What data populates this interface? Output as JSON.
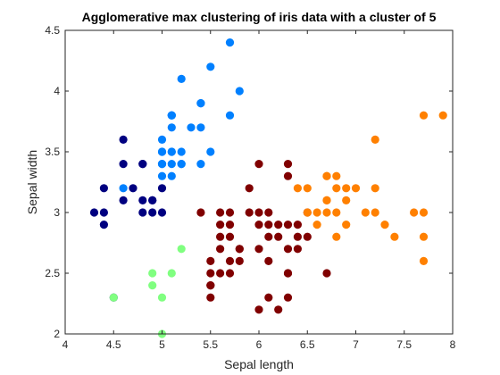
{
  "chart_data": {
    "type": "scatter",
    "title": "Agglomerative max clustering of iris data with a cluster of 5",
    "xlabel": "Sepal length",
    "ylabel": "Sepal width",
    "xlim": [
      4,
      8
    ],
    "ylim": [
      2,
      4.5
    ],
    "x_ticks": [
      4,
      4.5,
      5,
      5.5,
      6,
      6.5,
      7,
      7.5,
      8
    ],
    "x_tick_labels": [
      "4",
      "4.5",
      "5",
      "5.5",
      "6",
      "6.5",
      "7",
      "7.5",
      "8"
    ],
    "y_ticks": [
      2,
      2.5,
      3,
      3.5,
      4,
      4.5
    ],
    "y_tick_labels": [
      "2",
      "2.5",
      "3",
      "3.5",
      "4",
      "4.5"
    ],
    "grid": false,
    "legend": "none",
    "series": [
      {
        "color": "#000080",
        "points": [
          [
            4.3,
            3.0
          ],
          [
            4.4,
            2.9
          ],
          [
            4.4,
            3.0
          ],
          [
            4.4,
            3.2
          ],
          [
            4.6,
            3.1
          ],
          [
            4.6,
            3.4
          ],
          [
            4.6,
            3.6
          ],
          [
            4.7,
            3.2
          ],
          [
            4.8,
            3.0
          ],
          [
            4.8,
            3.1
          ],
          [
            4.8,
            3.4
          ],
          [
            4.8,
            3.4
          ],
          [
            4.9,
            3.0
          ],
          [
            4.9,
            3.1
          ],
          [
            4.9,
            3.1
          ],
          [
            5.0,
            3.0
          ],
          [
            5.0,
            3.2
          ],
          [
            4.5,
            2.3
          ]
        ]
      },
      {
        "color": "#0080ff",
        "points": [
          [
            5.0,
            3.3
          ],
          [
            5.0,
            3.4
          ],
          [
            5.0,
            3.4
          ],
          [
            5.0,
            3.5
          ],
          [
            5.0,
            3.5
          ],
          [
            5.0,
            3.6
          ],
          [
            5.1,
            3.3
          ],
          [
            5.1,
            3.4
          ],
          [
            5.1,
            3.5
          ],
          [
            5.1,
            3.5
          ],
          [
            5.1,
            3.7
          ],
          [
            5.1,
            3.8
          ],
          [
            5.1,
            3.8
          ],
          [
            5.1,
            3.8
          ],
          [
            5.2,
            3.4
          ],
          [
            5.2,
            3.5
          ],
          [
            5.2,
            4.1
          ],
          [
            5.3,
            3.7
          ],
          [
            5.4,
            3.4
          ],
          [
            5.4,
            3.7
          ],
          [
            5.4,
            3.9
          ],
          [
            5.4,
            3.9
          ],
          [
            5.5,
            3.5
          ],
          [
            5.5,
            4.2
          ],
          [
            5.7,
            3.8
          ],
          [
            5.7,
            4.4
          ],
          [
            5.8,
            4.0
          ],
          [
            4.6,
            3.2
          ],
          [
            5.2,
            3.4
          ]
        ]
      },
      {
        "color": "#80ff80",
        "points": [
          [
            4.5,
            2.3
          ],
          [
            4.9,
            2.4
          ],
          [
            4.9,
            2.5
          ],
          [
            5.0,
            2.0
          ],
          [
            5.0,
            2.3
          ],
          [
            5.1,
            2.5
          ],
          [
            5.2,
            2.7
          ]
        ]
      },
      {
        "color": "#800000",
        "points": [
          [
            5.4,
            3.0
          ],
          [
            5.5,
            2.3
          ],
          [
            5.5,
            2.4
          ],
          [
            5.5,
            2.4
          ],
          [
            5.5,
            2.5
          ],
          [
            5.5,
            2.6
          ],
          [
            5.6,
            2.5
          ],
          [
            5.6,
            2.7
          ],
          [
            5.6,
            2.8
          ],
          [
            5.6,
            2.9
          ],
          [
            5.6,
            3.0
          ],
          [
            5.7,
            2.5
          ],
          [
            5.7,
            2.6
          ],
          [
            5.7,
            2.8
          ],
          [
            5.7,
            2.9
          ],
          [
            5.7,
            3.0
          ],
          [
            5.8,
            2.6
          ],
          [
            5.8,
            2.7
          ],
          [
            5.8,
            2.7
          ],
          [
            5.9,
            3.0
          ],
          [
            6.0,
            2.2
          ],
          [
            6.0,
            2.7
          ],
          [
            6.0,
            2.9
          ],
          [
            6.0,
            3.0
          ],
          [
            6.0,
            3.4
          ],
          [
            6.1,
            2.6
          ],
          [
            6.1,
            2.8
          ],
          [
            6.1,
            2.9
          ],
          [
            6.1,
            3.0
          ],
          [
            6.2,
            2.2
          ],
          [
            6.2,
            2.8
          ],
          [
            6.2,
            2.9
          ],
          [
            6.3,
            2.3
          ],
          [
            6.3,
            2.5
          ],
          [
            6.3,
            2.7
          ],
          [
            6.3,
            2.9
          ],
          [
            6.3,
            3.3
          ],
          [
            6.3,
            3.4
          ],
          [
            6.4,
            2.7
          ],
          [
            6.4,
            2.8
          ],
          [
            6.4,
            2.9
          ],
          [
            6.5,
            2.8
          ],
          [
            6.5,
            3.0
          ],
          [
            6.7,
            2.5
          ],
          [
            5.9,
            3.2
          ],
          [
            6.1,
            2.3
          ],
          [
            6.3,
            2.5
          ]
        ]
      },
      {
        "color": "#ff8000",
        "points": [
          [
            6.5,
            3.0
          ],
          [
            6.5,
            3.2
          ],
          [
            6.6,
            2.9
          ],
          [
            6.6,
            3.0
          ],
          [
            6.7,
            3.0
          ],
          [
            6.7,
            3.1
          ],
          [
            6.7,
            3.3
          ],
          [
            6.7,
            3.3
          ],
          [
            6.8,
            2.8
          ],
          [
            6.8,
            3.0
          ],
          [
            6.8,
            3.2
          ],
          [
            6.9,
            3.1
          ],
          [
            6.9,
            3.2
          ],
          [
            7.0,
            3.2
          ],
          [
            7.1,
            3.0
          ],
          [
            7.2,
            3.0
          ],
          [
            7.2,
            3.2
          ],
          [
            7.2,
            3.6
          ],
          [
            7.3,
            2.9
          ],
          [
            7.4,
            2.8
          ],
          [
            7.6,
            3.0
          ],
          [
            7.7,
            2.6
          ],
          [
            7.7,
            2.8
          ],
          [
            7.7,
            3.0
          ],
          [
            7.7,
            3.8
          ],
          [
            7.9,
            3.8
          ],
          [
            6.9,
            2.9
          ],
          [
            6.7,
            3.1
          ],
          [
            6.8,
            3.3
          ],
          [
            6.4,
            3.2
          ]
        ]
      }
    ]
  }
}
